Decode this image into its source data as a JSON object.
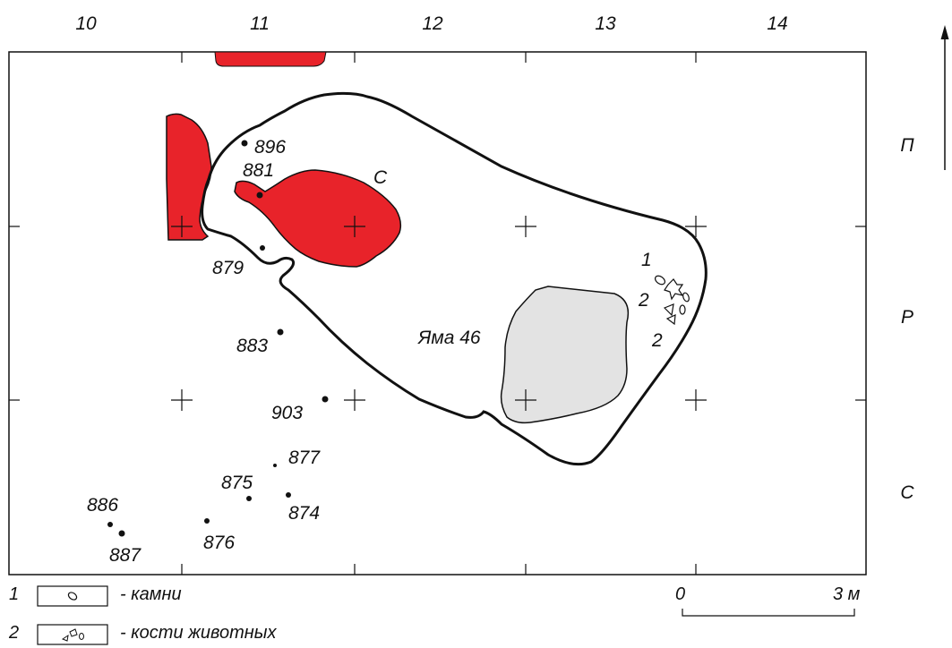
{
  "column_labels": [
    "10",
    "11",
    "12",
    "13",
    "14"
  ],
  "row_labels": [
    "П",
    "Р",
    "С"
  ],
  "pit_label": "Яма 46",
  "hearth_label": "С",
  "find_labels": [
    "896",
    "881",
    "879",
    "883",
    "903",
    "877",
    "875",
    "874",
    "886",
    "887",
    "876"
  ],
  "marker_labels": [
    "1",
    "2",
    "2"
  ],
  "legend": {
    "items": [
      {
        "number": "1",
        "text": "- камни"
      },
      {
        "number": "2",
        "text": "- кости животных"
      }
    ]
  },
  "scale_bar": {
    "start": "0",
    "end": "3 м"
  },
  "colors": {
    "hearth": "#e8232a",
    "pit": "#e3e3e3",
    "outline": "#000000"
  }
}
